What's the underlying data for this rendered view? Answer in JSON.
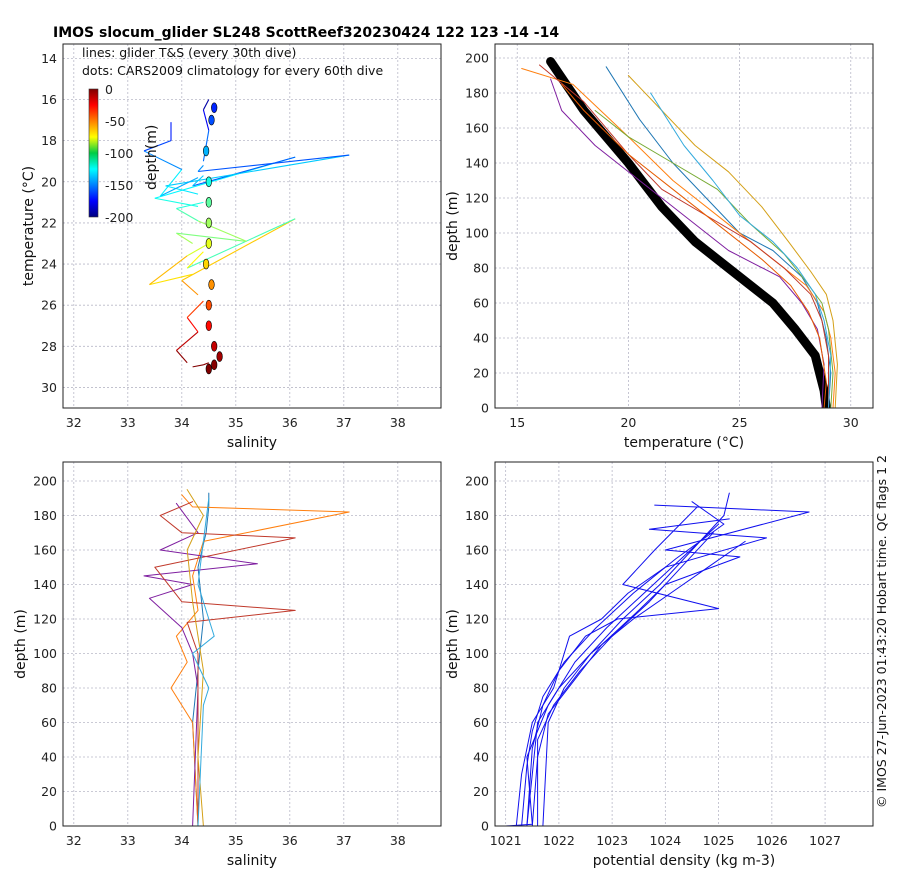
{
  "figure": {
    "title": "IMOS slocum_glider SL248 ScottReef320230424 122  123  -14  -14",
    "side_note": "© IMOS 27-Jun-2023 01:43:20 Hobart time. QC flags 1  2"
  },
  "chart_data": [
    {
      "id": "ts",
      "type": "scatter",
      "xlabel": "salinity",
      "ylabel": "temperature (°C)",
      "xlim": [
        31.8,
        38.8
      ],
      "ylim": [
        13.3,
        31.0
      ],
      "xticks": [
        32,
        33,
        34,
        35,
        36,
        37,
        38
      ],
      "yticks": [
        14,
        16,
        18,
        20,
        22,
        24,
        26,
        28,
        30
      ],
      "grid": true,
      "annotations": [
        "lines: glider T&S (every 30th dive)",
        "dots: CARS2009 climatology for every 60th dive"
      ],
      "colorbar": {
        "label": "depth(m)",
        "range": [
          -200,
          0
        ],
        "ticks": [
          0,
          -50,
          -100,
          -150,
          -200
        ],
        "colormap": "jet",
        "placement": "top-left"
      },
      "series": [
        {
          "style": "line",
          "x": [
            34.2,
            34.4,
            34.5
          ],
          "y": [
            29.0,
            28.9,
            28.8
          ]
        },
        {
          "style": "line",
          "x": [
            34.1,
            33.9,
            34.3,
            34.1,
            34.4
          ],
          "y": [
            28.8,
            28.2,
            27.3,
            26.6,
            25.8
          ]
        },
        {
          "style": "line",
          "x": [
            34.3,
            34.0,
            36.1,
            34.1,
            34.4
          ],
          "y": [
            25.5,
            24.8,
            21.8,
            24.2,
            23.4
          ]
        },
        {
          "style": "line",
          "x": [
            34.2,
            33.4,
            34.1,
            34.5
          ],
          "y": [
            24.5,
            25.0,
            23.6,
            23.0
          ]
        },
        {
          "style": "line",
          "x": [
            34.2,
            33.9,
            35.2,
            34.3,
            33.9,
            34.4
          ],
          "y": [
            23.0,
            22.5,
            22.9,
            21.9,
            21.3,
            21.0
          ]
        },
        {
          "style": "line",
          "x": [
            34.3,
            33.5,
            36.1,
            34.2,
            34.4
          ],
          "y": [
            21.2,
            20.8,
            18.8,
            20.2,
            19.7
          ]
        },
        {
          "style": "line",
          "x": [
            34.3,
            33.7,
            37.1,
            34.3,
            34.4
          ],
          "y": [
            20.6,
            20.2,
            18.7,
            19.5,
            19.2
          ]
        },
        {
          "style": "line",
          "x": [
            34.3,
            33.6,
            34.0,
            33.3,
            33.8,
            33.8
          ],
          "y": [
            19.8,
            20.7,
            19.4,
            18.5,
            18.0,
            17.1
          ]
        },
        {
          "style": "line",
          "x": [
            34.4,
            34.5,
            34.4,
            34.5
          ],
          "y": [
            19.0,
            17.5,
            16.5,
            16.0
          ]
        },
        {
          "style": "dots",
          "x": [
            34.5,
            34.6,
            34.7,
            34.6,
            34.5,
            34.5,
            34.55,
            34.45,
            34.5,
            34.5,
            34.5,
            34.5,
            34.45,
            34.55,
            34.6
          ],
          "y": [
            29.1,
            28.9,
            28.5,
            28.0,
            27.0,
            26.0,
            25.0,
            24.0,
            23.0,
            22.0,
            21.0,
            20.0,
            18.5,
            17.0,
            16.4
          ]
        }
      ]
    },
    {
      "id": "temp",
      "type": "line",
      "xlabel": "temperature (°C)",
      "ylabel": "depth (m)",
      "xlim": [
        14,
        31
      ],
      "ylim": [
        208,
        0
      ],
      "xticks": [
        15,
        20,
        25,
        30
      ],
      "yticks": [
        0,
        20,
        40,
        60,
        80,
        100,
        120,
        140,
        160,
        180,
        200
      ],
      "grid": true,
      "series": [
        {
          "name": "",
          "color": "#000000",
          "width": 9,
          "x": [
            28.9,
            28.8,
            28.6,
            28.4,
            27.5,
            26.5,
            25.0,
            23.0,
            21.5,
            20.0,
            18.0,
            16.5
          ],
          "y": [
            0,
            10,
            20,
            30,
            45,
            60,
            75,
            95,
            115,
            140,
            170,
            198
          ]
        },
        {
          "name": "",
          "color": "#1f77b4",
          "width": 1,
          "x": [
            29.0,
            29.1,
            28.9,
            28.5,
            27.8,
            26.5,
            25.0,
            23.5,
            22.0,
            20.5,
            19.0
          ],
          "y": [
            0,
            20,
            40,
            60,
            75,
            90,
            100,
            120,
            140,
            165,
            195
          ]
        },
        {
          "name": "",
          "color": "#ff7f0e",
          "width": 1,
          "x": [
            29.2,
            29.3,
            29.1,
            28.8,
            28.0,
            26.5,
            24.5,
            22.0,
            20.0,
            17.5,
            15.2
          ],
          "y": [
            0,
            20,
            40,
            55,
            70,
            85,
            105,
            130,
            155,
            185,
            194
          ]
        },
        {
          "name": "",
          "color": "#7f1fa0",
          "width": 1,
          "x": [
            28.7,
            28.8,
            28.5,
            27.8,
            26.8,
            24.5,
            22.5,
            20.5,
            18.5,
            17.0,
            16.5
          ],
          "y": [
            0,
            25,
            45,
            60,
            75,
            90,
            110,
            130,
            150,
            170,
            188
          ]
        },
        {
          "name": "",
          "color": "#c0392b",
          "width": 1,
          "x": [
            29.0,
            29.0,
            28.7,
            28.2,
            27.0,
            25.5,
            23.5,
            21.5,
            20.0,
            18.0,
            16.0
          ],
          "y": [
            0,
            30,
            50,
            65,
            80,
            95,
            110,
            125,
            145,
            175,
            196
          ]
        },
        {
          "name": "",
          "color": "#77aa33",
          "width": 1,
          "x": [
            29.1,
            29.2,
            29.0,
            28.7,
            28.0,
            27.0,
            25.5,
            24.0,
            22.0,
            20.0,
            18.5
          ],
          "y": [
            0,
            20,
            45,
            60,
            72,
            88,
            105,
            125,
            140,
            155,
            170
          ]
        },
        {
          "name": "",
          "color": "#d4a017",
          "width": 1,
          "x": [
            29.3,
            29.4,
            29.2,
            28.9,
            28.2,
            27.2,
            26.0,
            24.5,
            23.0,
            21.5,
            20.0
          ],
          "y": [
            0,
            25,
            50,
            65,
            78,
            95,
            115,
            135,
            150,
            170,
            190
          ]
        },
        {
          "name": "",
          "color": "#e65c00",
          "width": 1,
          "x": [
            28.8,
            28.9,
            28.6,
            28.1,
            27.3,
            26.0,
            24.0,
            22.0,
            20.0,
            18.0,
            17.0
          ],
          "y": [
            0,
            15,
            40,
            55,
            70,
            85,
            105,
            125,
            145,
            170,
            185
          ]
        },
        {
          "name": "",
          "color": "#33aadd",
          "width": 1,
          "x": [
            29.0,
            29.1,
            28.8,
            28.4,
            27.6,
            26.5,
            25.0,
            23.8,
            22.5,
            21.0
          ],
          "y": [
            0,
            30,
            50,
            65,
            80,
            95,
            110,
            130,
            150,
            180
          ]
        }
      ]
    },
    {
      "id": "sal",
      "type": "line",
      "xlabel": "salinity",
      "ylabel": "depth (m)",
      "xlim": [
        31.8,
        38.8
      ],
      "ylim": [
        211,
        0
      ],
      "xticks": [
        32,
        33,
        34,
        35,
        36,
        37,
        38
      ],
      "yticks": [
        0,
        20,
        40,
        60,
        80,
        100,
        120,
        140,
        160,
        180,
        200
      ],
      "grid": true,
      "series": [
        {
          "name": "",
          "color": "#1f77b4",
          "width": 1,
          "x": [
            34.3,
            34.25,
            34.2,
            34.3,
            34.4,
            34.3,
            34.45,
            34.5,
            34.5
          ],
          "y": [
            0,
            30,
            60,
            90,
            120,
            150,
            170,
            185,
            193
          ]
        },
        {
          "name": "",
          "color": "#ff7f0e",
          "width": 1,
          "x": [
            34.3,
            34.2,
            33.8,
            34.1,
            33.9,
            34.3,
            34.2,
            34.4,
            37.1,
            34.2,
            34.0
          ],
          "y": [
            0,
            60,
            80,
            95,
            110,
            125,
            145,
            165,
            182,
            185,
            192
          ]
        },
        {
          "name": "",
          "color": "#7f1fa0",
          "width": 1,
          "x": [
            34.2,
            34.3,
            34.2,
            34.0,
            33.4,
            34.2,
            33.3,
            35.4,
            33.6,
            34.3,
            33.9
          ],
          "y": [
            0,
            80,
            100,
            115,
            132,
            140,
            145,
            152,
            160,
            170,
            187
          ]
        },
        {
          "name": "",
          "color": "#c0392b",
          "width": 1,
          "x": [
            34.3,
            34.3,
            34.1,
            36.1,
            34.0,
            33.5,
            36.1,
            34.0,
            33.6,
            34.2
          ],
          "y": [
            0,
            100,
            118,
            125,
            130,
            150,
            167,
            170,
            180,
            188
          ]
        },
        {
          "name": "",
          "color": "#d4a017",
          "width": 1,
          "x": [
            34.4,
            34.3,
            34.4,
            34.2,
            34.1,
            34.4,
            34.1
          ],
          "y": [
            0,
            40,
            90,
            130,
            160,
            180,
            195
          ]
        },
        {
          "name": "",
          "color": "#33aadd",
          "width": 1,
          "x": [
            34.3,
            34.4,
            34.5,
            34.2,
            34.6,
            34.3,
            34.5
          ],
          "y": [
            0,
            70,
            80,
            100,
            110,
            140,
            190
          ]
        }
      ]
    },
    {
      "id": "dens",
      "type": "line",
      "xlabel": "potential density (kg m-3)",
      "ylabel": "depth (m)",
      "xlim": [
        1020.8,
        1027.9
      ],
      "ylim": [
        211,
        0
      ],
      "xticks": [
        1021,
        1022,
        1023,
        1024,
        1025,
        1026,
        1027
      ],
      "yticks": [
        0,
        20,
        40,
        60,
        80,
        100,
        120,
        140,
        160,
        180,
        200
      ],
      "grid": true,
      "series": [
        {
          "name": "",
          "color": "#1010ee",
          "width": 1,
          "x": [
            1021.4,
            1021.5,
            1021.6,
            1022.0,
            1022.6,
            1023.2,
            1023.9,
            1024.5,
            1025.1,
            1025.2
          ],
          "y": [
            0,
            30,
            60,
            80,
            100,
            120,
            140,
            160,
            180,
            193
          ]
        },
        {
          "name": "",
          "color": "#1010ee",
          "width": 1,
          "x": [
            1021.3,
            1021.4,
            1021.5,
            1021.7,
            1022.1,
            1022.7,
            1023.4,
            1024.2,
            1025.1,
            1024.5
          ],
          "y": [
            0,
            35,
            55,
            75,
            95,
            115,
            135,
            155,
            175,
            188
          ]
        },
        {
          "name": "",
          "color": "#1010ee",
          "width": 1,
          "x": [
            1021.5,
            1021.6,
            1021.8,
            1022.3,
            1022.8,
            1023.5,
            1024.0,
            1025.4,
            1024.0,
            1026.7,
            1023.8
          ],
          "y": [
            0,
            40,
            65,
            85,
            105,
            125,
            140,
            156,
            160,
            182,
            186
          ]
        },
        {
          "name": "",
          "color": "#1010ee",
          "width": 1,
          "x": [
            1021.2,
            1021.3,
            1021.5,
            1021.9,
            1022.2,
            1022.8,
            1023.3,
            1024.0,
            1025.9,
            1023.7,
            1025.2
          ],
          "y": [
            0,
            30,
            60,
            80,
            110,
            120,
            135,
            150,
            167,
            172,
            178
          ]
        },
        {
          "name": "",
          "color": "#1010ee",
          "width": 1,
          "x": [
            1021.4,
            1021.5,
            1021.7,
            1022.0,
            1022.5,
            1023.1,
            1025.0,
            1023.2,
            1023.8,
            1024.6
          ],
          "y": [
            0,
            45,
            70,
            90,
            110,
            120,
            126,
            140,
            160,
            185
          ]
        },
        {
          "name": "",
          "color": "#1010ee",
          "width": 1,
          "x": [
            1021.6,
            1021.6,
            1021.9,
            1022.4,
            1023.0,
            1023.7,
            1024.3,
            1024.9
          ],
          "y": [
            0,
            50,
            70,
            90,
            110,
            130,
            150,
            170
          ]
        },
        {
          "name": "",
          "color": "#1010ee",
          "width": 1,
          "x": [
            1021.0,
            1021.5,
            1021.4,
            1021.8,
            1022.3,
            1022.9,
            1023.6,
            1024.3,
            1025.0
          ],
          "y": [
            0,
            1,
            40,
            70,
            95,
            115,
            135,
            155,
            175
          ]
        },
        {
          "name": "",
          "color": "#1010ee",
          "width": 1,
          "x": [
            1021.7,
            1021.8,
            1022.1,
            1022.6,
            1023.4,
            1024.1,
            1024.8,
            1025.5
          ],
          "y": [
            0,
            60,
            80,
            100,
            120,
            135,
            150,
            165
          ]
        }
      ]
    }
  ]
}
